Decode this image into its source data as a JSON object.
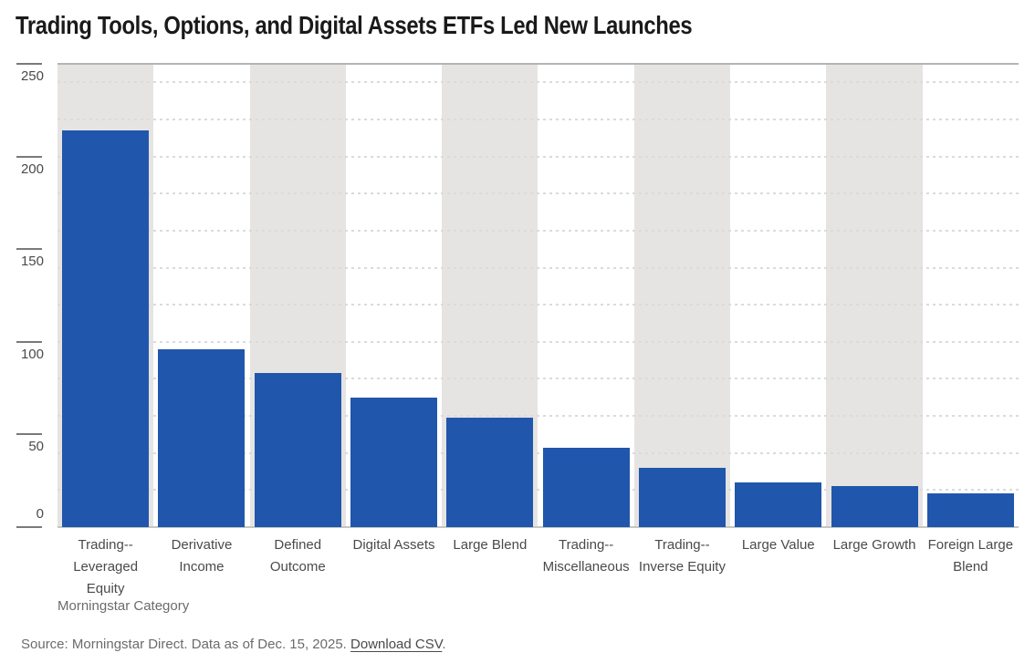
{
  "title": "Trading Tools, Options, and Digital Assets ETFs Led New Launches",
  "chart_data": {
    "type": "bar",
    "title": "Trading Tools, Options, and Digital Assets ETFs Led New Launches",
    "categories": [
      "Trading--Leveraged Equity",
      "Derivative Income",
      "Defined Outcome",
      "Digital Assets",
      "Large Blend",
      "Trading--Miscellaneous",
      "Trading--Inverse Equity",
      "Large Value",
      "Large Growth",
      "Foreign Large Blend"
    ],
    "category_lines": [
      [
        "Trading--",
        "Leveraged",
        "Equity"
      ],
      [
        "Derivative",
        "Income"
      ],
      [
        "Defined",
        "Outcome"
      ],
      [
        "Digital Assets"
      ],
      [
        "Large Blend"
      ],
      [
        "Trading--",
        "Miscellaneous"
      ],
      [
        "Trading--",
        "Inverse Equity"
      ],
      [
        "Large Value"
      ],
      [
        "Large Growth"
      ],
      [
        "Foreign Large",
        "Blend"
      ]
    ],
    "values": [
      214,
      96,
      83,
      70,
      59,
      43,
      32,
      24,
      22,
      18
    ],
    "xlabel": "Morningstar Category",
    "ylabel": "",
    "ylim": [
      0,
      250
    ],
    "yticks": [
      0,
      50,
      100,
      150,
      200,
      250
    ],
    "gridline_step": 20,
    "grid": "dotted horizontal lines every 20 units, visible on white bands",
    "legend_position": "none",
    "background_bands": "alternating gray/white vertical band per category, gray on odd categories",
    "colors": {
      "bar": "#2056ac",
      "band": "#e5e4e2",
      "grid": "#dbdbd9",
      "plot_top_border": "#b4b4b4",
      "baseline": "#c6c6c4",
      "tick_dash": "#7a7a7a",
      "tick_text": "#4a4a4a",
      "muted_text": "#6b6b6b",
      "title_text": "#1a1a1a"
    }
  },
  "footer": {
    "source_text": "Source: Morningstar Direct. Data as of Dec. 15, 2025. ",
    "download_label": "Download CSV",
    "download_suffix": "."
  }
}
